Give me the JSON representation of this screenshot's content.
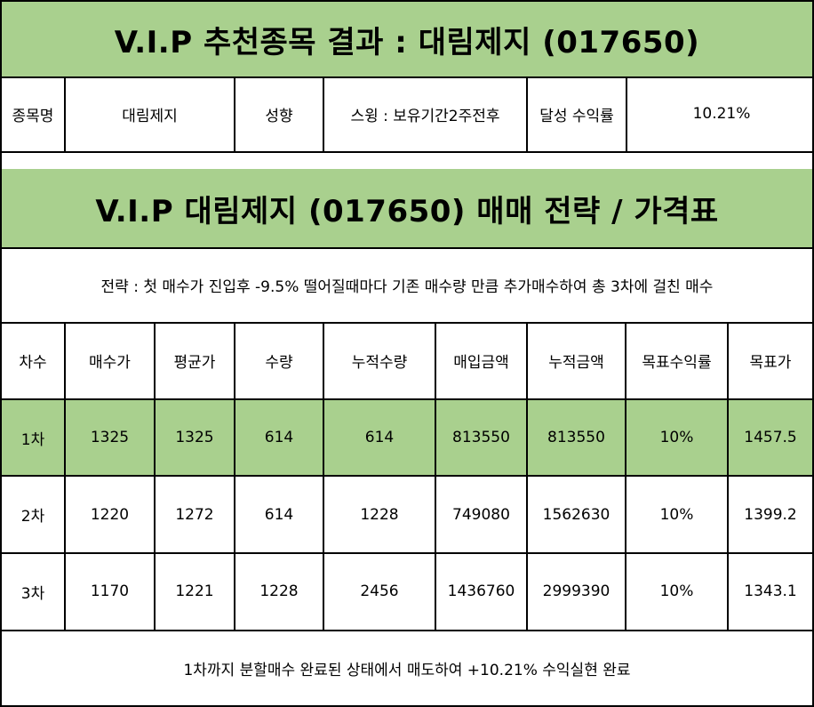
{
  "header": {
    "title": "V.I.P 추천종목 결과 : 대림제지 (017650)"
  },
  "summary": {
    "name_label": "종목명",
    "name_value": "대림제지",
    "type_label": "성향",
    "type_value": "스윙 : 보유기간2주전후",
    "return_label": "달성 수익률",
    "return_value": "10.21%"
  },
  "strategy_section": {
    "title": "V.I.P 대림제지 (017650) 매매 전략 / 가격표",
    "description": "전략 : 첫 매수가 진입후 -9.5% 떨어질때마다 기존 매수량 만큼 추가매수하여 총 3차에 걸친 매수"
  },
  "table": {
    "headers": [
      "차수",
      "매수가",
      "평균가",
      "수량",
      "누적수량",
      "매입금액",
      "누적금액",
      "목표수익률",
      "목표가"
    ],
    "rows": [
      [
        "1차",
        "1325",
        "1325",
        "614",
        "614",
        "813550",
        "813550",
        "10%",
        "1457.5"
      ],
      [
        "2차",
        "1220",
        "1272",
        "614",
        "1228",
        "749080",
        "1562630",
        "10%",
        "1399.2"
      ],
      [
        "3차",
        "1170",
        "1221",
        "1228",
        "2456",
        "1436760",
        "2999390",
        "10%",
        "1343.1"
      ]
    ]
  },
  "footer": {
    "text": "1차까지 분할매수 완료된 상태에서 매도하여 +10.21% 수익실현 완료"
  },
  "colors": {
    "highlight_green": "#a9d08e",
    "border": "#000000"
  }
}
